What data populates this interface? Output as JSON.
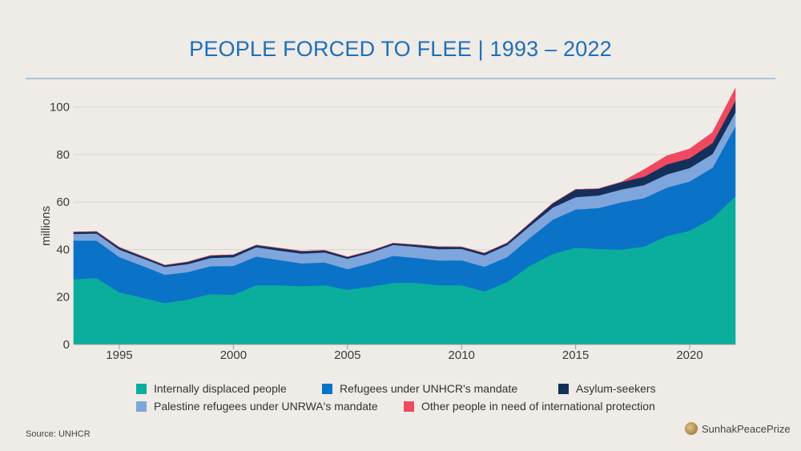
{
  "title": "PEOPLE FORCED TO FLEE | 1993 – 2022",
  "source": "Source: UNHCR",
  "brand": "SunhakPeacePrize",
  "legend_rows": [
    [
      {
        "label": "Internally displaced people",
        "color": "#0bad9c"
      },
      {
        "label": "Refugees under UNHCR's mandate",
        "color": "#0a72c7"
      },
      {
        "label": "Asylum-seekers",
        "color": "#14305a"
      }
    ],
    [
      {
        "label": "Palestine refugees under UNRWA's mandate",
        "color": "#7ea6dc"
      },
      {
        "label": "Other people in need of international protection",
        "color": "#ef4961"
      }
    ]
  ],
  "chart_data": {
    "type": "area",
    "stacked": true,
    "title": "PEOPLE FORCED TO FLEE | 1993 – 2022",
    "ylabel": "millions",
    "xlabel": "",
    "ylim": [
      0,
      108
    ],
    "xlim": [
      1993,
      2022
    ],
    "yticks": [
      0,
      20,
      40,
      60,
      80,
      100
    ],
    "xticks": [
      1995,
      2000,
      2005,
      2010,
      2015,
      2020
    ],
    "grid": "horizontal",
    "legend_position": "bottom",
    "x": [
      1993,
      1994,
      1995,
      1996,
      1997,
      1998,
      1999,
      2000,
      2001,
      2002,
      2003,
      2004,
      2005,
      2006,
      2007,
      2008,
      2009,
      2010,
      2011,
      2012,
      2013,
      2014,
      2015,
      2016,
      2017,
      2018,
      2019,
      2020,
      2021,
      2022
    ],
    "series": [
      {
        "name": "Internally displaced people",
        "color": "#0bad9c",
        "values": [
          27.5,
          28.0,
          22.0,
          19.8,
          17.5,
          19.0,
          21.3,
          21.0,
          25.0,
          25.0,
          24.6,
          25.0,
          23.1,
          24.4,
          26.0,
          26.0,
          25.0,
          25.0,
          22.4,
          26.4,
          33.3,
          38.2,
          40.8,
          40.3,
          40.0,
          41.3,
          45.7,
          48.0,
          53.2,
          62.5
        ]
      },
      {
        "name": "Refugees under UNHCR's mandate",
        "color": "#0a72c7",
        "values": [
          16.3,
          15.8,
          14.9,
          13.4,
          11.9,
          11.5,
          11.7,
          12.1,
          12.1,
          10.6,
          9.6,
          9.6,
          8.7,
          9.9,
          11.4,
          10.5,
          10.4,
          10.5,
          10.4,
          10.5,
          11.7,
          14.4,
          16.1,
          17.2,
          19.9,
          20.4,
          20.4,
          20.7,
          21.3,
          29.4
        ]
      },
      {
        "name": "Palestine refugees under UNRWA's mandate",
        "color": "#7ea6dc",
        "values": [
          2.8,
          3.0,
          3.1,
          3.2,
          3.3,
          3.4,
          3.5,
          3.7,
          3.9,
          4.0,
          4.1,
          4.2,
          4.3,
          4.4,
          4.6,
          4.7,
          4.8,
          4.8,
          4.8,
          5.0,
          5.0,
          5.1,
          5.2,
          5.3,
          5.4,
          5.5,
          5.6,
          5.7,
          5.8,
          5.9
        ]
      },
      {
        "name": "Asylum-seekers",
        "color": "#14305a",
        "values": [
          0.8,
          0.8,
          0.9,
          0.8,
          0.7,
          0.9,
          1.0,
          1.0,
          0.9,
          1.0,
          1.0,
          0.9,
          0.8,
          0.7,
          0.7,
          0.8,
          1.0,
          0.8,
          0.9,
          0.9,
          1.2,
          1.8,
          3.2,
          2.8,
          3.1,
          3.5,
          4.2,
          4.1,
          4.6,
          4.9
        ]
      },
      {
        "name": "Other people in need of international protection",
        "color": "#ef4961",
        "values": [
          0,
          0,
          0,
          0,
          0,
          0,
          0,
          0,
          0,
          0,
          0,
          0,
          0,
          0,
          0,
          0,
          0,
          0,
          0,
          0,
          0,
          0,
          0,
          0,
          0,
          3.0,
          3.6,
          3.9,
          4.4,
          5.2
        ]
      }
    ]
  }
}
